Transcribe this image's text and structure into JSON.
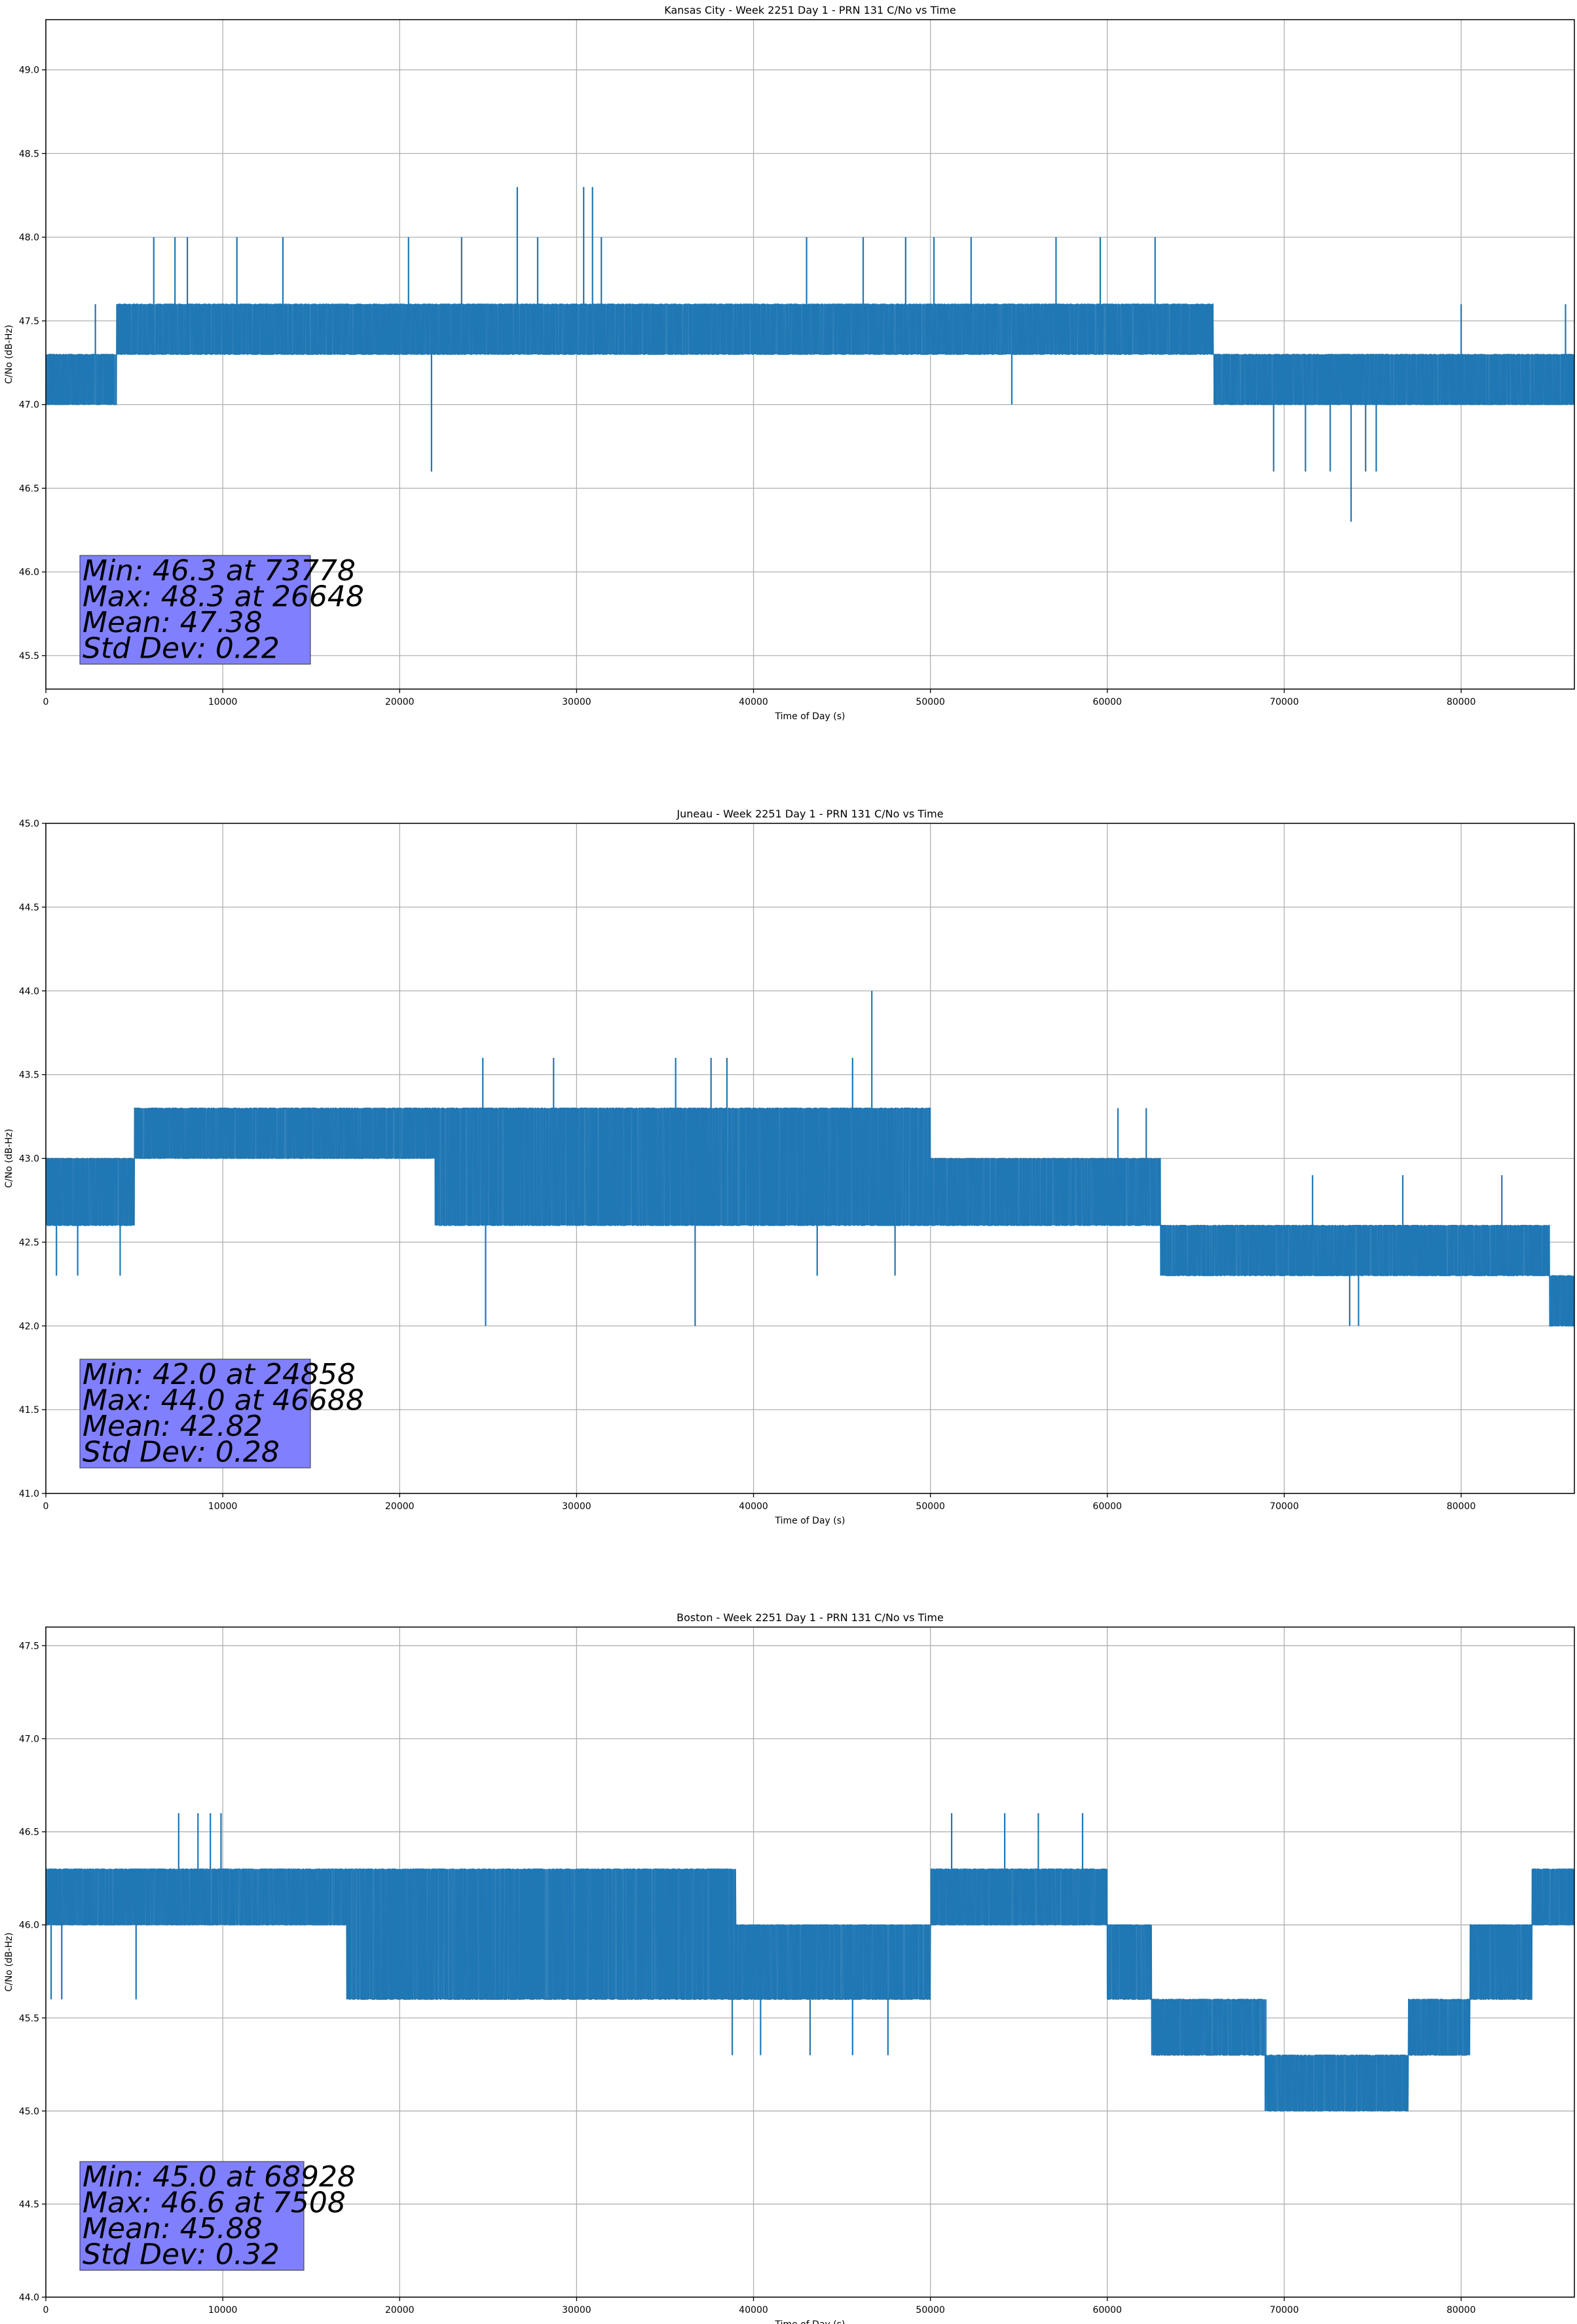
{
  "chart_data": [
    {
      "type": "line",
      "title": "Kansas City - Week 2251 Day 1 - PRN 131 C/No vs Time",
      "xlabel": "Time of Day (s)",
      "ylabel": "C/No (dB-Hz)",
      "xlim": [
        0,
        86400
      ],
      "ylim": [
        45.3,
        49.3
      ],
      "xticks": [
        0,
        10000,
        20000,
        30000,
        40000,
        50000,
        60000,
        70000,
        80000
      ],
      "yticks": [
        45.5,
        46.0,
        46.5,
        47.0,
        47.5,
        48.0,
        48.5,
        49.0
      ],
      "grid": true,
      "color": "#1f77b4",
      "stats_box_color": "#8080ff",
      "stats": [
        "Min: 46.3 at 73778",
        "Max: 48.3 at 26648",
        "Mean: 47.38",
        "Std Dev: 0.22"
      ],
      "band_segments": [
        {
          "x": [
            0,
            4000
          ],
          "levels": [
            47.0,
            47.3
          ]
        },
        {
          "x": [
            4000,
            66000
          ],
          "levels": [
            47.3,
            47.6
          ]
        },
        {
          "x": [
            66000,
            86400
          ],
          "levels": [
            47.0,
            47.3
          ]
        }
      ],
      "spikes": [
        {
          "x": 2800,
          "y": 47.6
        },
        {
          "x": 6100,
          "y": 48.0
        },
        {
          "x": 7300,
          "y": 48.0
        },
        {
          "x": 8000,
          "y": 48.0
        },
        {
          "x": 10800,
          "y": 48.0
        },
        {
          "x": 13400,
          "y": 48.0
        },
        {
          "x": 20500,
          "y": 48.0
        },
        {
          "x": 21800,
          "y": 46.6
        },
        {
          "x": 23500,
          "y": 48.0
        },
        {
          "x": 26648,
          "y": 48.3
        },
        {
          "x": 27800,
          "y": 48.0
        },
        {
          "x": 30400,
          "y": 48.3
        },
        {
          "x": 30900,
          "y": 48.3
        },
        {
          "x": 31400,
          "y": 48.0
        },
        {
          "x": 43000,
          "y": 48.0
        },
        {
          "x": 46200,
          "y": 48.0
        },
        {
          "x": 48600,
          "y": 48.0
        },
        {
          "x": 50200,
          "y": 48.0
        },
        {
          "x": 52300,
          "y": 48.0
        },
        {
          "x": 54600,
          "y": 47.0
        },
        {
          "x": 57100,
          "y": 48.0
        },
        {
          "x": 59600,
          "y": 48.0
        },
        {
          "x": 62700,
          "y": 48.0
        },
        {
          "x": 69400,
          "y": 46.6
        },
        {
          "x": 71200,
          "y": 46.6
        },
        {
          "x": 72600,
          "y": 46.6
        },
        {
          "x": 73778,
          "y": 46.3
        },
        {
          "x": 74600,
          "y": 46.6
        },
        {
          "x": 75200,
          "y": 46.6
        },
        {
          "x": 80000,
          "y": 47.6
        },
        {
          "x": 85900,
          "y": 47.6
        }
      ]
    },
    {
      "type": "line",
      "title": "Juneau - Week 2251 Day 1 - PRN 131 C/No vs Time",
      "xlabel": "Time of Day (s)",
      "ylabel": "C/No (dB-Hz)",
      "xlim": [
        0,
        86400
      ],
      "ylim": [
        41.0,
        45.0
      ],
      "xticks": [
        0,
        10000,
        20000,
        30000,
        40000,
        50000,
        60000,
        70000,
        80000
      ],
      "yticks": [
        41.0,
        41.5,
        42.0,
        42.5,
        43.0,
        43.5,
        44.0,
        44.5,
        45.0
      ],
      "grid": true,
      "color": "#1f77b4",
      "stats_box_color": "#8080ff",
      "stats": [
        "Min: 42.0 at 24858",
        "Max: 44.0 at 46688",
        "Mean: 42.82",
        "Std Dev: 0.28"
      ],
      "band_segments": [
        {
          "x": [
            0,
            5000
          ],
          "levels": [
            42.6,
            43.0
          ]
        },
        {
          "x": [
            5000,
            22000
          ],
          "levels": [
            43.0,
            43.3
          ]
        },
        {
          "x": [
            22000,
            50000
          ],
          "levels": [
            42.6,
            43.3
          ]
        },
        {
          "x": [
            50000,
            63000
          ],
          "levels": [
            42.6,
            43.0
          ]
        },
        {
          "x": [
            63000,
            85000
          ],
          "levels": [
            42.3,
            42.6
          ]
        },
        {
          "x": [
            85000,
            86400
          ],
          "levels": [
            42.0,
            42.3
          ]
        }
      ],
      "spikes": [
        {
          "x": 600,
          "y": 42.3
        },
        {
          "x": 1800,
          "y": 42.3
        },
        {
          "x": 4200,
          "y": 42.3
        },
        {
          "x": 24858,
          "y": 42.0
        },
        {
          "x": 24700,
          "y": 43.6
        },
        {
          "x": 25500,
          "y": 43.3
        },
        {
          "x": 28700,
          "y": 43.6
        },
        {
          "x": 35600,
          "y": 43.6
        },
        {
          "x": 36700,
          "y": 42.0
        },
        {
          "x": 37600,
          "y": 43.6
        },
        {
          "x": 38500,
          "y": 43.6
        },
        {
          "x": 43600,
          "y": 42.3
        },
        {
          "x": 45600,
          "y": 43.6
        },
        {
          "x": 46688,
          "y": 44.0
        },
        {
          "x": 48000,
          "y": 42.3
        },
        {
          "x": 60600,
          "y": 43.3
        },
        {
          "x": 62200,
          "y": 43.3
        },
        {
          "x": 73700,
          "y": 42.0
        },
        {
          "x": 74200,
          "y": 42.0
        },
        {
          "x": 71600,
          "y": 42.9
        },
        {
          "x": 76700,
          "y": 42.9
        },
        {
          "x": 82300,
          "y": 42.9
        }
      ]
    },
    {
      "type": "line",
      "title": "Boston - Week 2251 Day 1 - PRN 131 C/No vs Time",
      "xlabel": "Time of Day (s)",
      "ylabel": "C/No (dB-Hz)",
      "xlim": [
        0,
        86400
      ],
      "ylim": [
        44.0,
        47.6
      ],
      "xticks": [
        0,
        10000,
        20000,
        30000,
        40000,
        50000,
        60000,
        70000,
        80000
      ],
      "yticks": [
        44.0,
        44.5,
        45.0,
        45.5,
        46.0,
        46.5,
        47.0,
        47.5
      ],
      "grid": true,
      "color": "#1f77b4",
      "stats_box_color": "#8080ff",
      "stats": [
        "Min: 45.0 at 68928",
        "Max: 46.6 at 7508",
        "Mean: 45.88",
        "Std Dev: 0.32"
      ],
      "band_segments": [
        {
          "x": [
            0,
            17000
          ],
          "levels": [
            46.0,
            46.3
          ]
        },
        {
          "x": [
            17000,
            39000
          ],
          "levels": [
            45.6,
            46.3
          ]
        },
        {
          "x": [
            39000,
            50000
          ],
          "levels": [
            45.6,
            46.0
          ]
        },
        {
          "x": [
            50000,
            60000
          ],
          "levels": [
            46.0,
            46.3
          ]
        },
        {
          "x": [
            60000,
            62500
          ],
          "levels": [
            45.6,
            46.0
          ]
        },
        {
          "x": [
            62500,
            69000
          ],
          "levels": [
            45.3,
            45.6
          ]
        },
        {
          "x": [
            69000,
            77000
          ],
          "levels": [
            45.0,
            45.3
          ]
        },
        {
          "x": [
            77000,
            80500
          ],
          "levels": [
            45.3,
            45.6
          ]
        },
        {
          "x": [
            80500,
            84000
          ],
          "levels": [
            45.6,
            46.0
          ]
        },
        {
          "x": [
            84000,
            86400
          ],
          "levels": [
            46.0,
            46.3
          ]
        }
      ],
      "spikes": [
        {
          "x": 300,
          "y": 45.6
        },
        {
          "x": 900,
          "y": 45.6
        },
        {
          "x": 5100,
          "y": 45.6
        },
        {
          "x": 7508,
          "y": 46.6
        },
        {
          "x": 8600,
          "y": 46.6
        },
        {
          "x": 9300,
          "y": 46.6
        },
        {
          "x": 9900,
          "y": 46.6
        },
        {
          "x": 38800,
          "y": 45.3
        },
        {
          "x": 40400,
          "y": 45.3
        },
        {
          "x": 43200,
          "y": 45.3
        },
        {
          "x": 45600,
          "y": 45.3
        },
        {
          "x": 47600,
          "y": 45.3
        },
        {
          "x": 51200,
          "y": 46.6
        },
        {
          "x": 54200,
          "y": 46.6
        },
        {
          "x": 56100,
          "y": 46.6
        },
        {
          "x": 58600,
          "y": 46.6
        },
        {
          "x": 68928,
          "y": 45.0
        },
        {
          "x": 71800,
          "y": 45.0
        },
        {
          "x": 74300,
          "y": 45.0
        },
        {
          "x": 80300,
          "y": 45.3
        },
        {
          "x": 84700,
          "y": 46.3
        }
      ]
    }
  ]
}
